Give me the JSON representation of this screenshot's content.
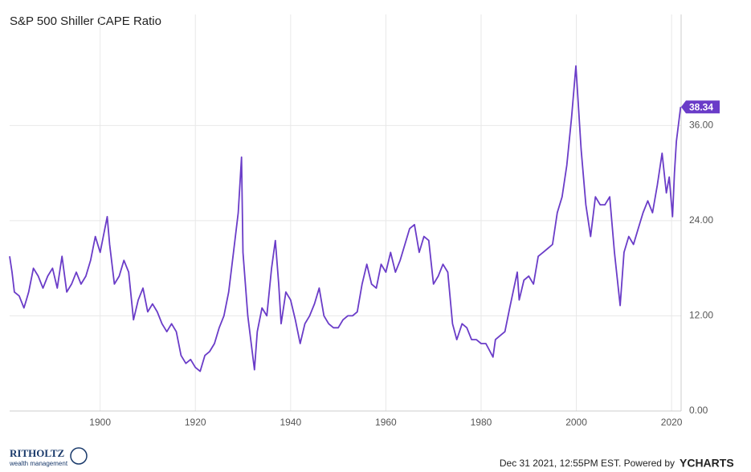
{
  "chart_data": {
    "type": "line",
    "title": "S&P 500 Shiller CAPE Ratio",
    "x": [
      1881,
      1881.5,
      1882,
      1883,
      1884,
      1884.5,
      1885,
      1886,
      1887,
      1888,
      1889,
      1890,
      1891,
      1892,
      1893,
      1894,
      1895,
      1896,
      1897,
      1898,
      1899,
      1900,
      1901.5,
      1902,
      1903,
      1904,
      1905,
      1906,
      1907,
      1908,
      1909,
      1910,
      1911,
      1912,
      1913,
      1914,
      1915,
      1916,
      1917,
      1918,
      1919,
      1920,
      1921,
      1922,
      1923,
      1924,
      1925,
      1926,
      1927,
      1928,
      1929,
      1929.7,
      1930,
      1931,
      1932.4,
      1933,
      1934,
      1935,
      1936,
      1936.8,
      1937.5,
      1938,
      1939,
      1940,
      1941,
      1942,
      1943,
      1944,
      1945,
      1946,
      1947,
      1948,
      1949,
      1950,
      1951,
      1952,
      1953,
      1954,
      1955,
      1956,
      1957,
      1958,
      1959,
      1960,
      1961,
      1962,
      1963,
      1964,
      1965,
      1966,
      1967,
      1968,
      1969,
      1970,
      1971,
      1972,
      1973,
      1974,
      1974.9,
      1976,
      1977,
      1978,
      1979,
      1980,
      1981,
      1982.5,
      1983,
      1984,
      1985,
      1986,
      1987.6,
      1988,
      1989,
      1990,
      1991,
      1992,
      1993,
      1994,
      1995,
      1996,
      1997,
      1998,
      1999,
      1999.9,
      2001,
      2002,
      2003,
      2004,
      2005,
      2006,
      2007,
      2008,
      2009.2,
      2010,
      2011,
      2012,
      2013,
      2014,
      2015,
      2016,
      2017,
      2018,
      2018.9,
      2019.5,
      2020.2,
      2020.6,
      2021,
      2021.9
    ],
    "series": [
      {
        "name": "S&P 500 Shiller CAPE Ratio",
        "color": "#6a3cc8",
        "values": [
          19.5,
          17.5,
          15,
          14.5,
          13,
          14,
          15,
          18,
          17,
          15.5,
          17,
          18,
          15.5,
          19.5,
          15,
          16,
          17.5,
          16,
          17,
          19,
          22,
          20,
          24.5,
          21,
          16,
          17,
          19,
          17.5,
          11.5,
          14,
          15.5,
          12.5,
          13.5,
          12.5,
          11,
          10,
          11,
          10,
          7,
          6,
          6.5,
          5.5,
          5,
          7,
          7.5,
          8.5,
          10.5,
          12,
          15,
          20,
          25,
          32,
          20,
          12,
          5.2,
          10,
          13,
          12,
          18,
          21.5,
          16,
          11,
          15,
          14,
          11.5,
          8.5,
          11,
          12,
          13.5,
          15.5,
          12,
          11,
          10.5,
          10.5,
          11.5,
          12,
          12,
          12.5,
          16,
          18.5,
          16,
          15.5,
          18.5,
          17.5,
          20,
          17.5,
          19,
          21,
          23,
          23.5,
          20,
          22,
          21.5,
          16,
          17,
          18.5,
          17.5,
          11,
          9,
          11,
          10.5,
          9,
          9,
          8.5,
          8.5,
          6.8,
          9,
          9.5,
          10,
          13,
          17.5,
          14,
          16.5,
          17,
          16,
          19.5,
          20,
          20.5,
          21,
          25,
          27,
          31,
          37,
          43.5,
          33,
          26,
          22,
          27,
          26,
          26,
          27,
          20,
          13.3,
          20,
          22,
          21,
          23,
          25,
          26.5,
          25,
          28.5,
          32.5,
          27.5,
          29.5,
          24.5,
          30,
          34,
          38.34
        ]
      }
    ],
    "xlim": [
      1881,
      2022
    ],
    "ylim": [
      0,
      50
    ],
    "xticks": [
      1900,
      1920,
      1940,
      1960,
      1980,
      2000,
      2020
    ],
    "yticks": [
      {
        "value": 0,
        "label": "0.00"
      },
      {
        "value": 12,
        "label": "12.00"
      },
      {
        "value": 24,
        "label": "24.00"
      },
      {
        "value": 36,
        "label": "36.00"
      }
    ],
    "grid": true
  },
  "footer": {
    "timestamp": "Dec 31 2021, 12:55PM EST. Powered by",
    "brand": "YCHARTS",
    "logo_name": "RITHOLTZ",
    "logo_sub": "wealth management"
  }
}
